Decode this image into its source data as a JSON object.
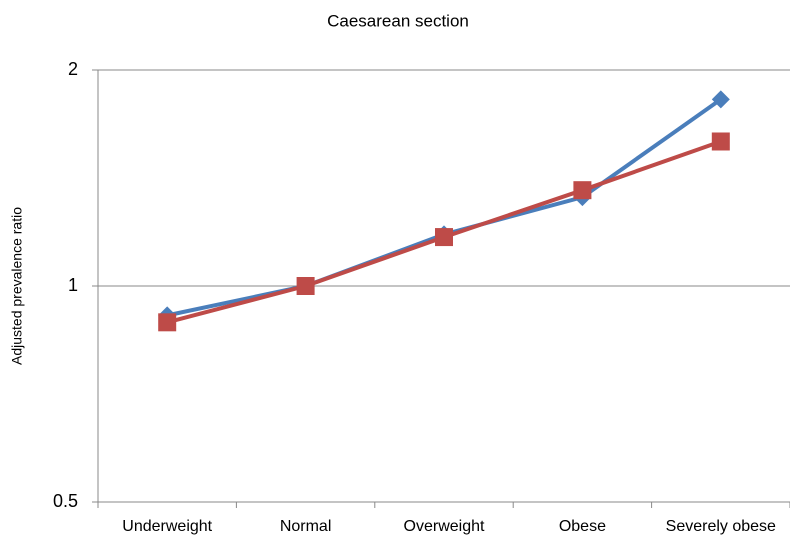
{
  "chart_data": {
    "type": "line",
    "title": "Caesarean section",
    "y_label": "Adjusted prevalence ratio",
    "categories": [
      "Underweight",
      "Normal",
      "Overweight",
      "Obese",
      "Severely obese"
    ],
    "series": [
      {
        "color": "#4a7ebb",
        "marker": "diamond",
        "values": [
          0.91,
          1,
          1.18,
          1.33,
          1.82
        ]
      },
      {
        "color": "#be4b48",
        "marker": "square",
        "values": [
          0.89,
          1,
          1.17,
          1.36,
          1.59
        ]
      }
    ],
    "ylim": [
      0.5,
      2
    ],
    "yticks": [
      0.5,
      1,
      2
    ],
    "yscale": "log",
    "grid": true
  }
}
